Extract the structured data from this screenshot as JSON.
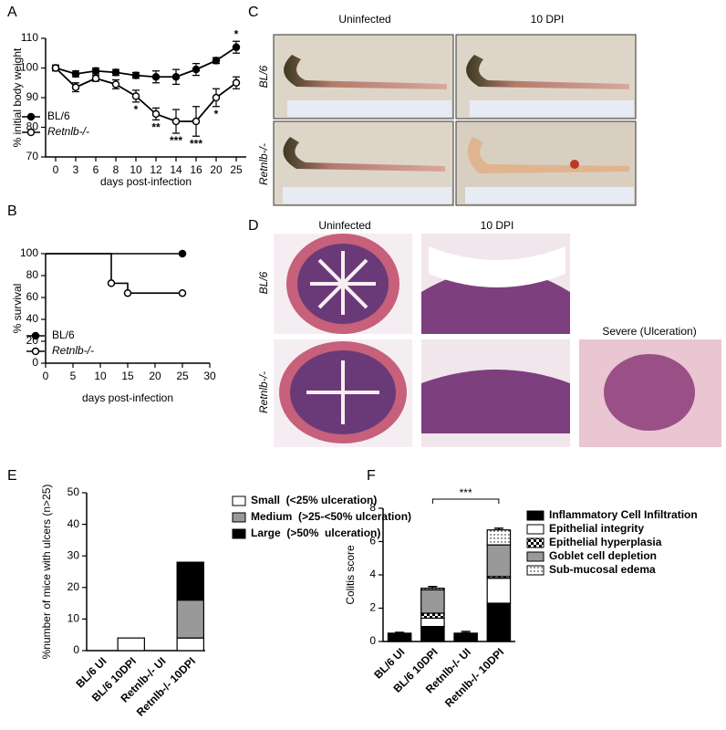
{
  "figure": {
    "panel_labels": [
      "A",
      "B",
      "C",
      "D",
      "E",
      "F"
    ],
    "photos": {
      "columns": [
        "Uninfected",
        "10 DPI"
      ],
      "rows": [
        "BL/6",
        "Retnlb-/-"
      ]
    },
    "histology": {
      "columns": [
        "Uninfected",
        "10 DPI",
        "Severe (Ulceration)"
      ],
      "rows": [
        "BL/6",
        "Retnlb-/-"
      ]
    }
  },
  "chart_data": [
    {
      "type": "line",
      "ylabel": "% initial body weight",
      "xlabel": "days post-infection",
      "categories": [
        "0",
        "3",
        "6",
        "8",
        "10",
        "12",
        "14",
        "16",
        "20",
        "25"
      ],
      "ylim": [
        70,
        110
      ],
      "yticks": [
        70,
        80,
        90,
        100,
        110
      ],
      "series": [
        {
          "name": "BL/6",
          "color": "#000000",
          "marker": "filled",
          "values": [
            100,
            98,
            99,
            98.5,
            97.5,
            97,
            97,
            99.5,
            102.5,
            107
          ],
          "errors": [
            0.5,
            1,
            1,
            1,
            1,
            2,
            2.5,
            2,
            1,
            2
          ]
        },
        {
          "name": "Retnlb-/-",
          "color": "#000000",
          "marker": "open",
          "values": [
            100,
            93.5,
            96.5,
            94.5,
            90.5,
            84.5,
            82,
            82,
            90,
            95
          ],
          "errors": [
            1,
            1.5,
            1,
            1.5,
            2,
            2,
            4,
            5,
            3,
            2
          ]
        }
      ],
      "annotations": [
        {
          "text": "*",
          "x": "10",
          "series": "Retnlb-/-"
        },
        {
          "text": "**",
          "x": "12",
          "series": "Retnlb-/-"
        },
        {
          "text": "***",
          "x": "14",
          "series": "Retnlb-/-"
        },
        {
          "text": "***",
          "x": "16",
          "series": "Retnlb-/-"
        },
        {
          "text": "*",
          "x": "20",
          "series": "Retnlb-/-"
        },
        {
          "text": "*",
          "x": "25",
          "series": "BL/6"
        }
      ]
    },
    {
      "type": "step",
      "ylabel": "% survival",
      "xlabel": "days post-infection",
      "xlim": [
        0,
        30
      ],
      "xticks": [
        0,
        5,
        10,
        15,
        20,
        25,
        30
      ],
      "ylim": [
        0,
        100
      ],
      "yticks": [
        0,
        20,
        40,
        60,
        80,
        100
      ],
      "series": [
        {
          "name": "BL/6",
          "color": "#000000",
          "marker": "filled",
          "x": [
            0,
            25
          ],
          "values": [
            100,
            100
          ]
        },
        {
          "name": "Retnlb-/-",
          "color": "#000000",
          "marker": "open",
          "x": [
            0,
            12,
            15,
            25
          ],
          "values": [
            100,
            73,
            64,
            64
          ]
        }
      ]
    },
    {
      "type": "stacked_bar",
      "ylabel": "%number of mice with ulcers (n>25)",
      "categories": [
        "BL/6 UI",
        "BL/6 10DPI",
        "Retnlb-/- UI",
        "Retnlb-/- 10DPI"
      ],
      "ylim": [
        0,
        50
      ],
      "yticks": [
        0,
        10,
        20,
        30,
        40,
        50
      ],
      "series": [
        {
          "name": "Small  (<25% ulceration)",
          "color": "#ffffff",
          "values": [
            0,
            4,
            0,
            4
          ]
        },
        {
          "name": "Medium  (>25-<50% ulceration)",
          "color": "#999999",
          "values": [
            0,
            0,
            0,
            12
          ]
        },
        {
          "name": "Large  (>50%  ulceration)",
          "color": "#000000",
          "values": [
            0,
            0,
            0,
            12
          ]
        }
      ]
    },
    {
      "type": "stacked_bar",
      "ylabel": "Colitis score",
      "categories": [
        "BL/6 UI",
        "BL/6 10DPI",
        "Retnlb-/- UI",
        "Retnlb-/- 10DPI"
      ],
      "ylim": [
        0,
        8
      ],
      "yticks": [
        0,
        2,
        4,
        6,
        8
      ],
      "series": [
        {
          "name": "Inflammatory Cell Infiltration",
          "color": "#000000",
          "values": [
            0.5,
            0.9,
            0.5,
            2.3
          ],
          "errors": [
            0.05,
            0.1,
            0.1,
            0.15
          ]
        },
        {
          "name": "Epithelial integrity",
          "color": "#ffffff",
          "values": [
            0,
            0.5,
            0,
            1.5
          ]
        },
        {
          "name": "Epithelial hyperplasia",
          "color": "#ffffff",
          "pattern": "checker",
          "values": [
            0,
            0.3,
            0,
            0.1
          ]
        },
        {
          "name": "Goblet cell depletion",
          "color": "#999999",
          "values": [
            0,
            1.4,
            0,
            1.9
          ],
          "errors": [
            0,
            0.1,
            0,
            0.15
          ]
        },
        {
          "name": "Sub-mucosal edema",
          "color": "#ffffff",
          "pattern": "dots",
          "values": [
            0,
            0.1,
            0,
            0.9
          ],
          "errors": [
            0,
            0.1,
            0,
            0.1
          ]
        }
      ],
      "significance": {
        "from": "BL/6 10DPI",
        "to": "Retnlb-/- 10DPI",
        "text": "***"
      }
    }
  ]
}
